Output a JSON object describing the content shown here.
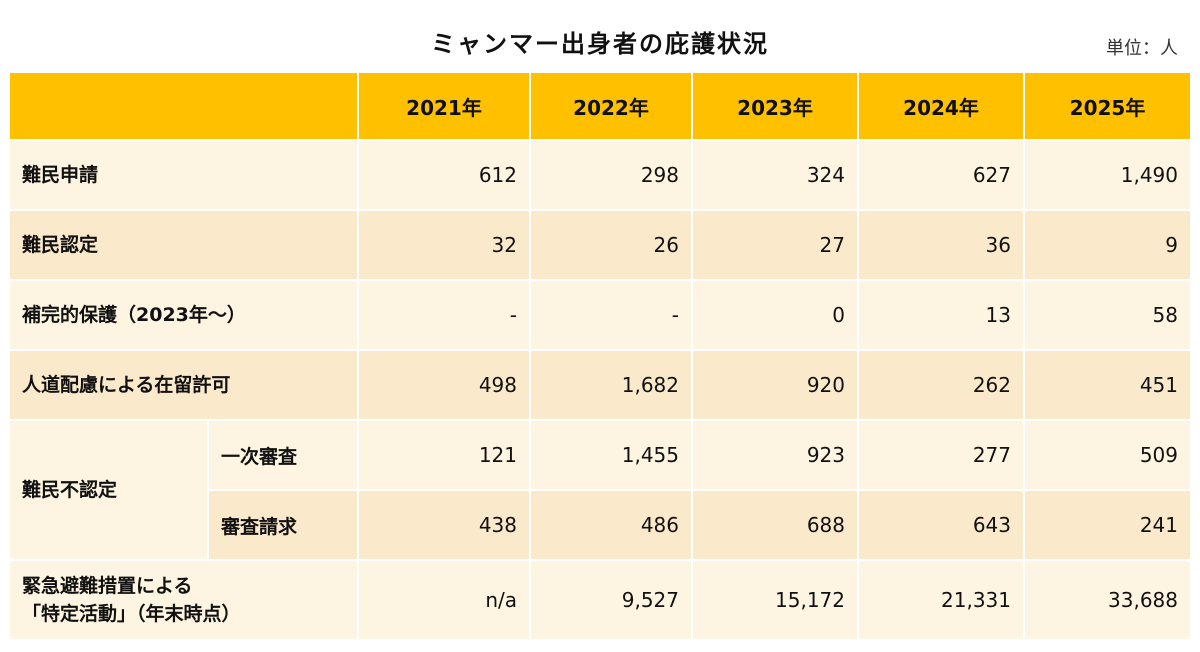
{
  "title": "ミャンマー出身者の庇護状況",
  "unit": "単位：人",
  "chart_data": {
    "type": "table",
    "title": "ミャンマー出身者の庇護状況",
    "unit": "単位：人",
    "columns": [
      "2021年",
      "2022年",
      "2023年",
      "2024年",
      "2025年"
    ],
    "rows": [
      {
        "label": "難民申請",
        "values": [
          "612",
          "298",
          "324",
          "627",
          "1,490"
        ]
      },
      {
        "label": "難民認定",
        "values": [
          "32",
          "26",
          "27",
          "36",
          "9"
        ]
      },
      {
        "label": "補完的保護（2023年～）",
        "values": [
          "-",
          "-",
          "0",
          "13",
          "58"
        ]
      },
      {
        "label": "人道配慮による在留許可",
        "values": [
          "498",
          "1,682",
          "920",
          "262",
          "451"
        ]
      },
      {
        "label": "一次審査",
        "values": [
          "121",
          "1,455",
          "923",
          "277",
          "509"
        ]
      },
      {
        "label": "審査請求",
        "values": [
          "438",
          "486",
          "688",
          "643",
          "241"
        ]
      },
      {
        "label": "緊急避難措置による",
        "label2": "「特定活動」（年末時点）",
        "values": [
          "n/a",
          "9,527",
          "15,172",
          "21,331",
          "33,688"
        ]
      }
    ],
    "group": {
      "label": "難民不認定"
    }
  }
}
